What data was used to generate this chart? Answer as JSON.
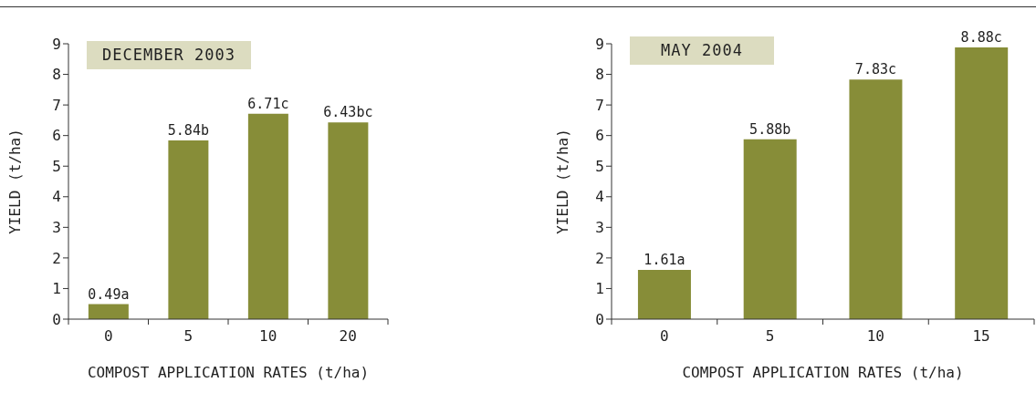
{
  "chart_data": [
    {
      "type": "bar",
      "title": "DECEMBER 2003",
      "xlabel": "COMPOST APPLICATION RATES (t/ha)",
      "ylabel": "YIELD (t/ha)",
      "categories": [
        "0",
        "5",
        "10",
        "20"
      ],
      "values": [
        0.49,
        5.84,
        6.71,
        6.43
      ],
      "value_labels": [
        "0.49a",
        "5.84b",
        "6.71c",
        "6.43bc"
      ],
      "color": "#878d38",
      "ylim": [
        0,
        9
      ],
      "yticks": [
        0,
        1,
        2,
        3,
        4,
        5,
        6,
        7,
        8,
        9
      ]
    },
    {
      "type": "bar",
      "title": "MAY 2004",
      "xlabel": "COMPOST APPLICATION RATES (t/ha)",
      "ylabel": "YIELD (t/ha)",
      "categories": [
        "0",
        "5",
        "10",
        "15"
      ],
      "values": [
        1.61,
        5.88,
        7.83,
        8.88
      ],
      "value_labels": [
        "1.61a",
        "5.88b",
        "7.83c",
        "8.88c"
      ],
      "color": "#878d38",
      "ylim": [
        0,
        9
      ],
      "yticks": [
        0,
        1,
        2,
        3,
        4,
        5,
        6,
        7,
        8,
        9
      ]
    }
  ]
}
